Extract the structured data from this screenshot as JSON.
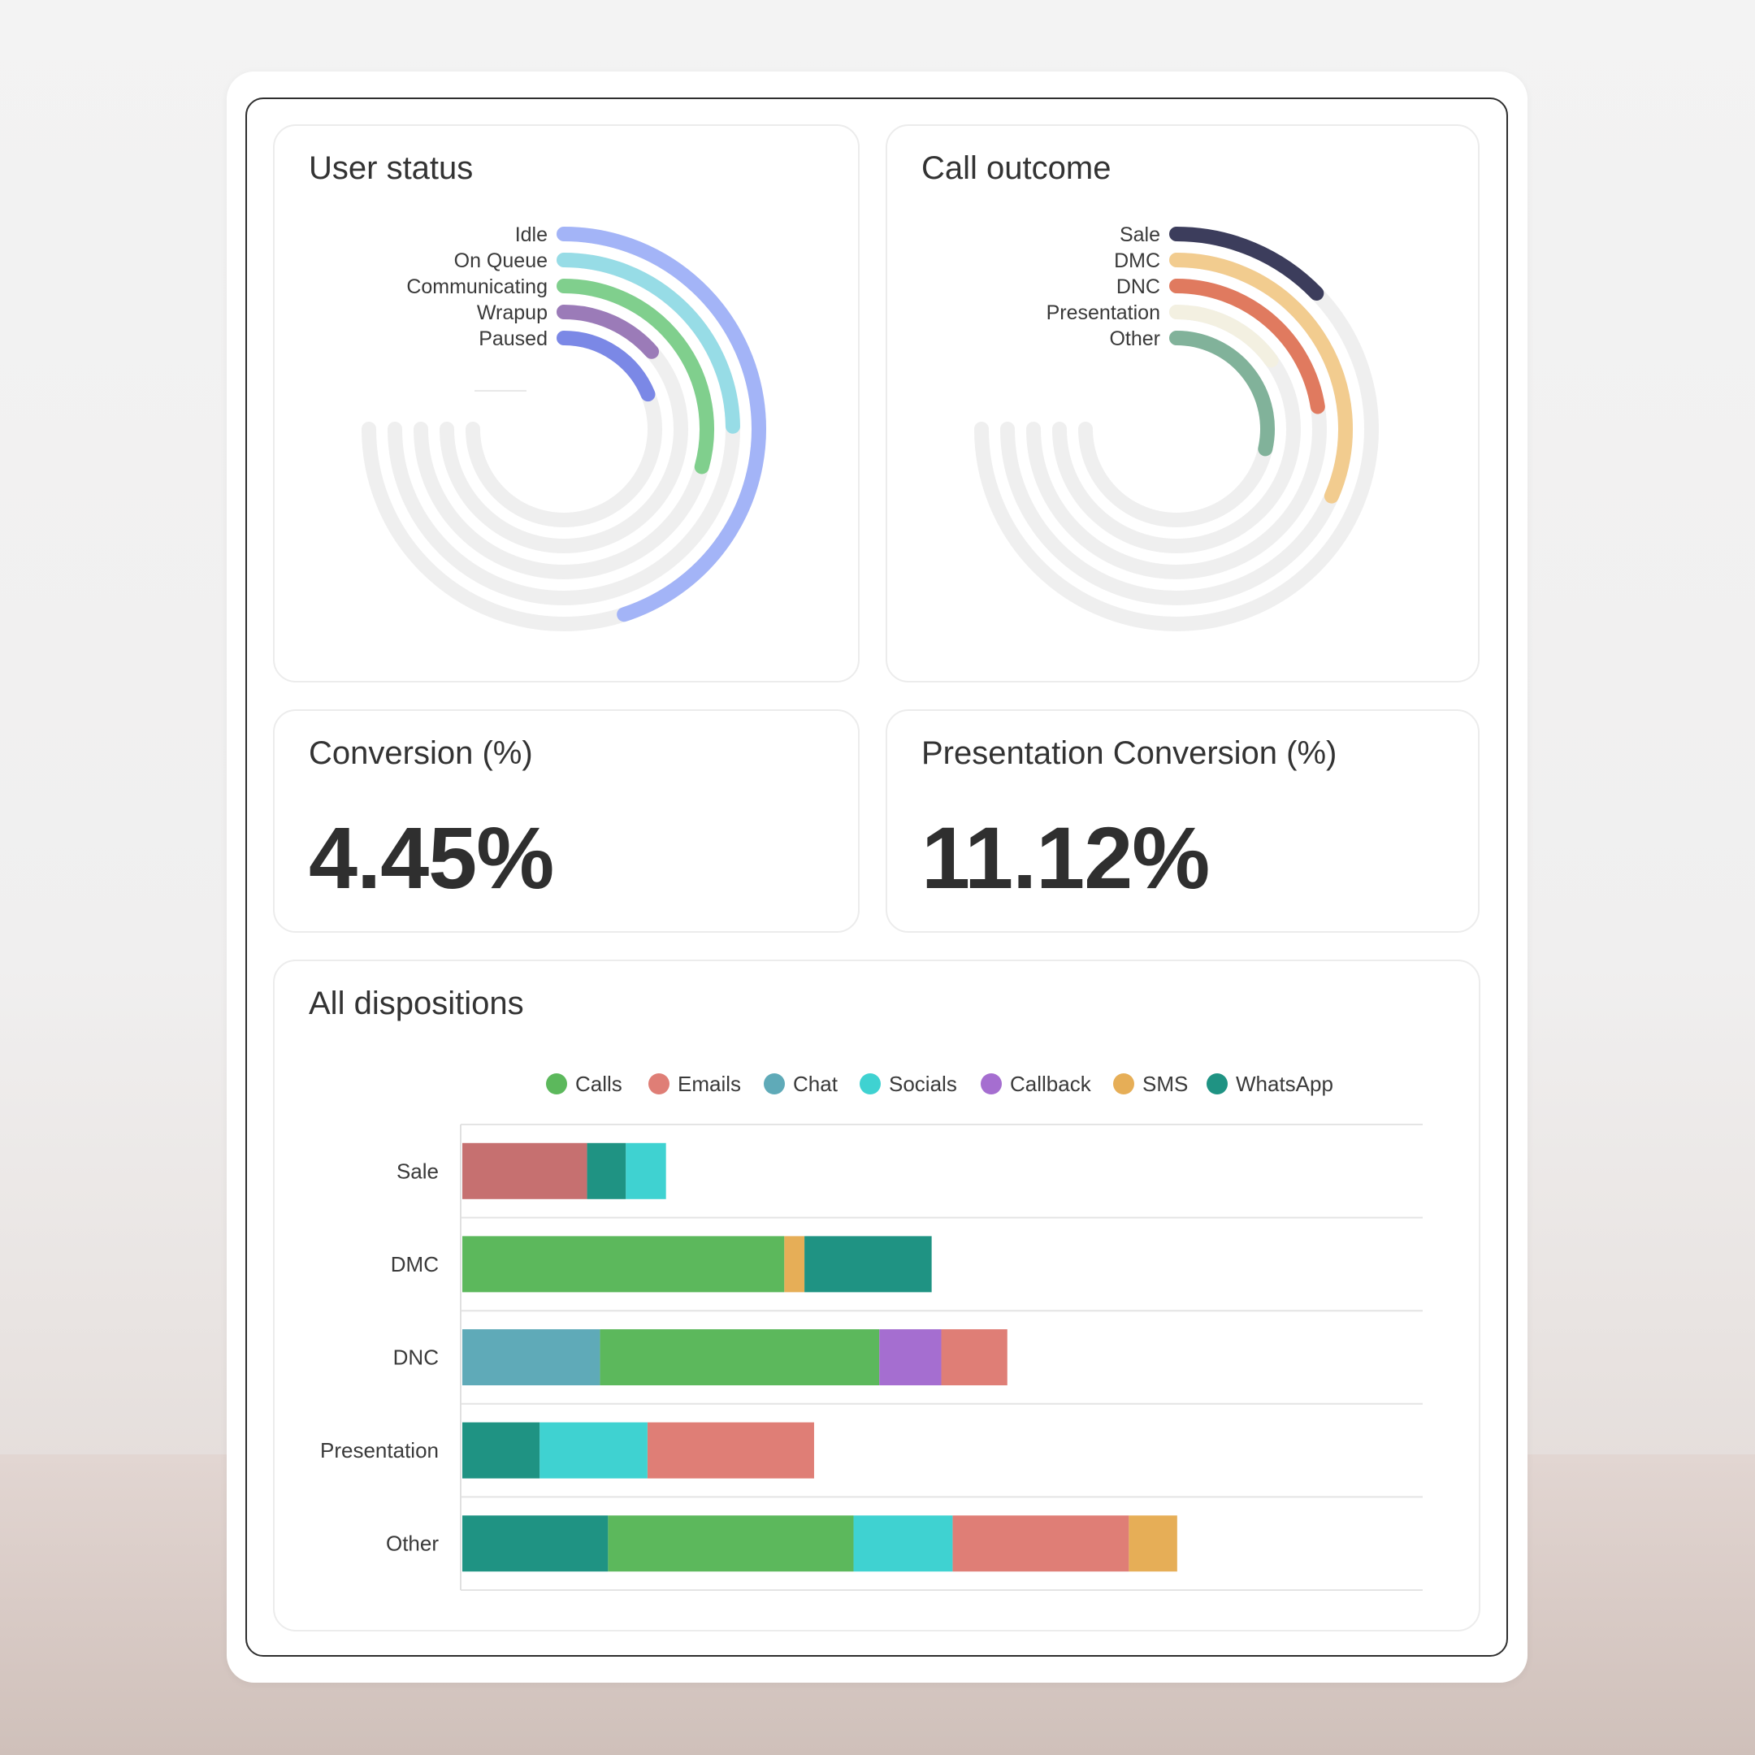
{
  "user_status": {
    "title": "User status",
    "colors": {
      "track": "#efefef"
    }
  },
  "call_outcome": {
    "title": "Call outcome"
  },
  "conversion": {
    "title": "Conversion (%)",
    "value": "4.45%"
  },
  "presentation_conversion": {
    "title": "Presentation Conversion (%)",
    "value": "11.12%"
  },
  "dispositions": {
    "title": "All dispositions"
  },
  "chart_data": [
    {
      "type": "radial-bar",
      "title": "User status",
      "max": 100,
      "series": [
        {
          "name": "Idle",
          "value": 60,
          "color": "#a3b4f7"
        },
        {
          "name": "On Queue",
          "value": 33,
          "color": "#97dce6"
        },
        {
          "name": "Communicating",
          "value": 39,
          "color": "#80cf8d"
        },
        {
          "name": "Wrapup",
          "value": 18,
          "color": "#9b7bb8"
        },
        {
          "name": "Paused",
          "value": 25,
          "color": "#7b88e6"
        }
      ]
    },
    {
      "type": "radial-bar",
      "title": "Call outcome",
      "max": 100,
      "series": [
        {
          "name": "Sale",
          "value": 17,
          "color": "#3c3d5c"
        },
        {
          "name": "DMC",
          "value": 42,
          "color": "#f2cc8f"
        },
        {
          "name": "DNC",
          "value": 30,
          "color": "#e07a5f"
        },
        {
          "name": "Presentation",
          "value": 20,
          "color": "#f3f0e1"
        },
        {
          "name": "Other",
          "value": 38,
          "color": "#81b29a"
        }
      ]
    },
    {
      "type": "bar",
      "orientation": "horizontal",
      "stacked": true,
      "title": "All dispositions",
      "legend": "top",
      "categories": [
        "Sale",
        "DMC",
        "DNC",
        "Presentation",
        "Other"
      ],
      "series": [
        {
          "name": "Calls",
          "color": "#5cb85c",
          "segments": [
            {
              "category": "DMC",
              "start": 0,
              "end": 400
            },
            {
              "category": "DNC",
              "start": 171,
              "end": 518
            },
            {
              "category": "Other",
              "start": 181,
              "end": 486
            }
          ]
        },
        {
          "name": "Emails",
          "color": "#df7e76",
          "segments": [
            {
              "category": "Sale",
              "start": 0,
              "end": 155
            },
            {
              "category": "DNC",
              "start": 595,
              "end": 677
            },
            {
              "category": "Presentation",
              "start": 230,
              "end": 437
            },
            {
              "category": "Other",
              "start": 609,
              "end": 828
            }
          ]
        },
        {
          "name": "Chat",
          "color": "#5faab8",
          "segments": [
            {
              "category": "DNC",
              "start": 0,
              "end": 171
            }
          ]
        },
        {
          "name": "Socials",
          "color": "#3fd2d1",
          "segments": [
            {
              "category": "Sale",
              "start": 203,
              "end": 253
            },
            {
              "category": "Presentation",
              "start": 96,
              "end": 230
            },
            {
              "category": "Other",
              "start": 486,
              "end": 609
            }
          ]
        },
        {
          "name": "Callback",
          "color": "#a56ed0",
          "segments": [
            {
              "category": "DNC",
              "start": 518,
              "end": 595
            }
          ]
        },
        {
          "name": "SMS",
          "color": "#e6ae57",
          "segments": [
            {
              "category": "DMC",
              "start": 400,
              "end": 425
            },
            {
              "category": "Other",
              "start": 828,
              "end": 888
            }
          ]
        },
        {
          "name": "WhatsApp",
          "color": "#1f9383",
          "segments": [
            {
              "category": "Sale",
              "start": 155,
              "end": 203
            },
            {
              "category": "DMC",
              "start": 425,
              "end": 583
            },
            {
              "category": "Presentation",
              "start": 0,
              "end": 96
            },
            {
              "category": "Other",
              "start": 0,
              "end": 181
            }
          ]
        }
      ],
      "xlim": [
        0,
        1195
      ],
      "sale_bar_color": "#c67070"
    }
  ]
}
